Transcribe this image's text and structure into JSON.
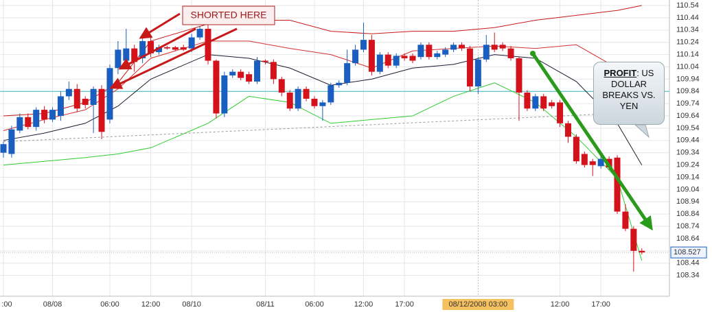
{
  "chart_data": {
    "type": "candlestick",
    "ylim": [
      108.17,
      110.585
    ],
    "yticks": [
      110.54,
      110.44,
      110.34,
      110.24,
      110.14,
      110.04,
      109.94,
      109.84,
      109.74,
      109.64,
      109.54,
      109.44,
      109.34,
      109.24,
      109.14,
      109.04,
      108.94,
      108.84,
      108.74,
      108.64,
      108.54,
      108.44,
      108.34
    ],
    "grid": true,
    "categories": [
      ":00",
      null,
      null,
      null,
      null,
      null,
      "08/08",
      null,
      null,
      null,
      null,
      null,
      null,
      "06:00",
      null,
      null,
      null,
      null,
      "12:00",
      null,
      null,
      null,
      null,
      "08/10",
      null,
      null,
      null,
      null,
      null,
      null,
      null,
      null,
      "08/11",
      null,
      null,
      null,
      null,
      null,
      "06:00",
      null,
      null,
      null,
      null,
      null,
      "12:00",
      null,
      null,
      null,
      null,
      "17:00",
      null,
      null,
      null,
      null,
      null,
      null,
      null,
      null,
      null,
      null,
      null,
      null,
      null,
      null,
      null,
      null,
      null,
      null,
      "12:00",
      null,
      null,
      null,
      null,
      "17:00",
      null,
      null,
      null,
      null,
      null
    ],
    "up_color": "#1a5fc0",
    "down_color": "#d4121c",
    "open": [
      109.34,
      109.33,
      109.52,
      109.63,
      109.55,
      109.69,
      109.61,
      109.64,
      109.8,
      109.86,
      109.78,
      109.73,
      109.86,
      109.61,
      110.03,
      110.09,
      110.19,
      110.11,
      110.25,
      110.16,
      110.2,
      110.2,
      110.2,
      110.19,
      110.28,
      110.35,
      110.09,
      109.66,
      109.97,
      110.0,
      109.98,
      109.92,
      110.09,
      110.08,
      109.94,
      109.83,
      109.7,
      109.86,
      109.78,
      109.72,
      109.75,
      109.89,
      109.91,
      110.07,
      110.18,
      110.26,
      110.0,
      110.14,
      110.05,
      110.13,
      110.13,
      110.12,
      110.22,
      110.12,
      110.14,
      110.18,
      110.22,
      110.19,
      109.88,
      110.1,
      110.22,
      110.22,
      110.19,
      110.11,
      109.83,
      109.7,
      109.8,
      109.75,
      109.75,
      109.58,
      109.47,
      109.33,
      109.27,
      109.23,
      109.29,
      109.3,
      108.86,
      108.72,
      108.54
    ],
    "close": [
      109.41,
      109.53,
      109.63,
      109.55,
      109.69,
      109.61,
      109.69,
      109.8,
      109.86,
      109.7,
      109.73,
      109.86,
      109.51,
      110.03,
      110.18,
      110.19,
      110.08,
      110.25,
      110.15,
      110.2,
      110.19,
      110.18,
      110.18,
      110.28,
      110.35,
      110.09,
      109.66,
      109.97,
      110.0,
      109.95,
      109.92,
      110.09,
      110.08,
      109.94,
      109.83,
      109.7,
      109.86,
      109.78,
      109.72,
      109.75,
      109.89,
      109.91,
      110.07,
      110.18,
      110.26,
      110.0,
      110.14,
      110.05,
      110.13,
      110.11,
      110.09,
      110.22,
      110.12,
      110.15,
      110.18,
      110.22,
      110.19,
      109.88,
      110.1,
      110.22,
      110.18,
      110.19,
      110.11,
      109.83,
      109.7,
      109.8,
      109.7,
      109.72,
      109.58,
      109.47,
      109.27,
      109.24,
      109.24,
      109.29,
      109.22,
      108.86,
      108.72,
      108.54,
      108.527
    ],
    "high": [
      109.43,
      109.56,
      109.66,
      109.66,
      109.71,
      109.72,
      109.71,
      109.84,
      109.92,
      109.9,
      109.8,
      109.88,
      109.89,
      110.06,
      110.25,
      110.35,
      110.22,
      110.28,
      110.28,
      110.22,
      110.21,
      110.21,
      110.22,
      110.31,
      110.37,
      110.38,
      110.1,
      110.0,
      110.02,
      110.02,
      110.0,
      110.12,
      110.1,
      110.1,
      109.96,
      109.85,
      109.88,
      109.88,
      109.8,
      109.77,
      109.91,
      109.93,
      110.18,
      110.22,
      110.4,
      110.3,
      110.16,
      110.16,
      110.15,
      110.15,
      110.15,
      110.24,
      110.24,
      110.17,
      110.2,
      110.24,
      110.24,
      110.21,
      110.12,
      110.3,
      110.32,
      110.24,
      110.21,
      110.12,
      109.85,
      109.82,
      109.82,
      109.77,
      109.77,
      109.6,
      109.49,
      109.35,
      109.29,
      109.31,
      109.31,
      109.32,
      108.92,
      108.74,
      108.56
    ],
    "low": [
      109.3,
      109.3,
      109.5,
      109.53,
      109.52,
      109.58,
      109.59,
      109.6,
      109.77,
      109.67,
      109.7,
      109.5,
      109.45,
      109.58,
      109.98,
      110.02,
      110.0,
      110.07,
      110.12,
      110.14,
      110.18,
      110.17,
      110.17,
      110.16,
      110.26,
      110.06,
      109.62,
      109.63,
      109.95,
      109.93,
      109.9,
      109.9,
      110.06,
      109.9,
      109.8,
      109.68,
      109.68,
      109.76,
      109.7,
      109.6,
      109.73,
      109.87,
      109.89,
      110.05,
      110.16,
      109.97,
      109.98,
      110.03,
      110.03,
      110.09,
      110.07,
      110.1,
      110.1,
      110.1,
      110.12,
      110.16,
      110.17,
      109.84,
      109.82,
      110.08,
      110.16,
      110.17,
      110.09,
      109.6,
      109.68,
      109.68,
      109.68,
      109.7,
      109.55,
      109.42,
      109.25,
      109.22,
      109.15,
      109.21,
      109.2,
      108.84,
      108.7,
      108.37,
      108.51
    ],
    "overlays": [
      {
        "color": "#c81818",
        "x": [
          0,
          5,
          10,
          14,
          18,
          25,
          30,
          35,
          40,
          45,
          50,
          55,
          60,
          65,
          70,
          75,
          78
        ],
        "values": [
          109.64,
          109.66,
          109.75,
          109.91,
          110.25,
          110.39,
          110.42,
          110.42,
          110.33,
          110.31,
          110.33,
          110.33,
          110.36,
          110.42,
          110.46,
          110.5,
          110.54
        ]
      },
      {
        "color": "#d43030",
        "x": [
          0,
          5,
          10,
          14,
          18,
          25,
          30,
          35,
          40,
          45,
          50,
          55,
          60,
          65,
          70,
          75,
          78
        ],
        "values": [
          109.52,
          109.61,
          109.69,
          109.86,
          110.11,
          110.25,
          110.25,
          110.19,
          110.14,
          110.03,
          110.17,
          110.19,
          110.21,
          110.19,
          110.22,
          110.03,
          109.94
        ]
      },
      {
        "color": "#1a1a30",
        "x": [
          0,
          5,
          10,
          14,
          18,
          25,
          30,
          35,
          40,
          45,
          50,
          55,
          60,
          65,
          70,
          75,
          78
        ],
        "values": [
          109.44,
          109.5,
          109.58,
          109.72,
          109.94,
          110.14,
          110.11,
          110.03,
          109.89,
          109.94,
          110.03,
          110.06,
          110.14,
          110.11,
          109.92,
          109.58,
          109.24
        ]
      },
      {
        "color": "#2ecc2e",
        "x": [
          0,
          5,
          10,
          14,
          18,
          25,
          30,
          35,
          40,
          45,
          50,
          55,
          60,
          65,
          70,
          75,
          78
        ],
        "values": [
          109.24,
          109.27,
          109.3,
          109.33,
          109.38,
          109.58,
          109.8,
          109.75,
          109.58,
          109.61,
          109.64,
          109.8,
          109.91,
          109.75,
          109.47,
          109.13,
          108.46
        ]
      },
      {
        "color": "#999999",
        "dashed": true,
        "x": [
          0,
          78
        ],
        "values": [
          109.43,
          109.67
        ]
      }
    ],
    "hline": {
      "value": 109.84,
      "color": "#39b8c0"
    },
    "last_price": 108.527,
    "highlighted_label": {
      "label": "08/12/2008 03:00",
      "x": 58
    },
    "annotations": {
      "shorted": "SHORTED HERE",
      "profit_bold": "PROFIT",
      "profit_text": ": US DOLLAR BREAKS VS. YEN"
    }
  }
}
